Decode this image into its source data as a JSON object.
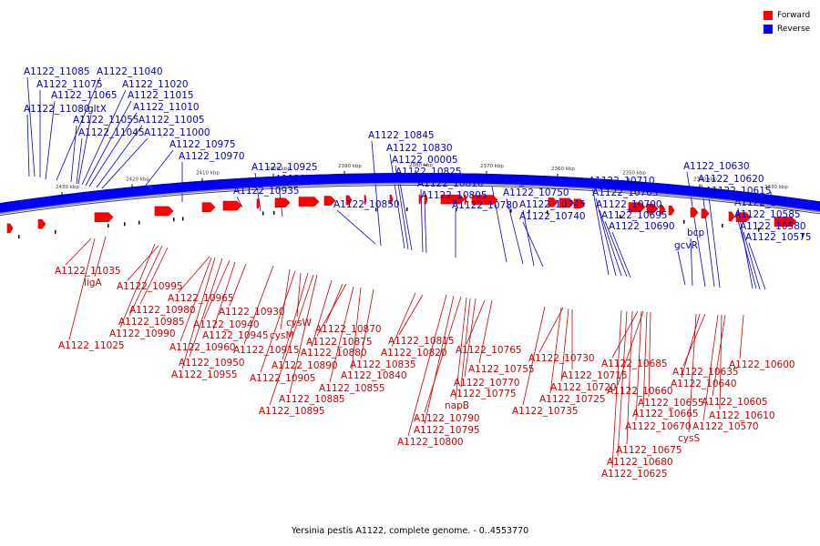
{
  "caption": "Yersinia pestis A1122, complete genome. - 0..4553770",
  "legend": [
    {
      "label": "Forward",
      "color": "#ff0000"
    },
    {
      "label": "Reverse",
      "color": "#0000ff"
    }
  ],
  "colors": {
    "forward": "#ff0000",
    "reverse": "#0000ff",
    "forward_line": "#cc0000",
    "reverse_line": "#0000cc"
  },
  "ticks": [
    "2430 kbp",
    "2420 kbp",
    "2410 kbp",
    "2400 kbp",
    "2390 kbp",
    "2380 kbp",
    "2370 kbp",
    "2360 kbp",
    "2350 kbp",
    "2340 kbp",
    "2330 kbp"
  ],
  "reverse_labels": [
    "A1122_11085",
    "A1122_11040",
    "A1122_11075",
    "A1122_11020",
    "A1122_11065",
    "A1122_11015",
    "A1122_11080",
    "gltX",
    "A1122_11010",
    "A1122_11055",
    "A1122_11005",
    "A1122_11045",
    "A1122_11000",
    "A1122_10975",
    "A1122_10970",
    "A1122_10925",
    "A1122_10920",
    "A1122_10935",
    "A1122_10850",
    "A1122_10845",
    "A1122_10830",
    "A1122_00005",
    "A1122_10825",
    "A1122_10810",
    "A1122_10805",
    "A1122_10780",
    "A1122_10760",
    "A1122_10750",
    "A1122_10745",
    "A1122_10740",
    "A1122_10710",
    "A1122_10705",
    "A1122_10700",
    "A1122_10695",
    "A1122_10690",
    "bcp",
    "gcvR",
    "A1122_10630",
    "A1122_10620",
    "A1122_10615",
    "A1122_10590",
    "A1122_10585",
    "A1122_10580",
    "A1122_10575"
  ],
  "forward_labels": [
    "A1122_11035",
    "ligA",
    "A1122_10995",
    "A1122_10965",
    "A1122_10980",
    "A1122_10985",
    "A1122_10990",
    "A1122_11025",
    "A1122_10930",
    "A1122_10940",
    "A1122_10945",
    "A1122_10960",
    "cysW",
    "cysM",
    "A1122_10915",
    "A1122_10950",
    "A1122_10955",
    "A1122_10890",
    "A1122_10905",
    "A1122_10885",
    "A1122_10895",
    "A1122_10870",
    "A1122_10875",
    "A1122_10880",
    "A1122_10835",
    "A1122_10840",
    "A1122_10855",
    "A1122_10815",
    "A1122_10820",
    "A1122_10765",
    "A1122_10755",
    "A1122_10770",
    "A1122_10775",
    "napB",
    "A1122_10790",
    "A1122_10795",
    "A1122_10800",
    "A1122_10730",
    "A1122_10715",
    "A1122_10720",
    "A1122_10725",
    "A1122_10735",
    "A1122_10685",
    "A1122_10660",
    "A1122_10655",
    "A1122_10665",
    "A1122_10670",
    "A1122_10675",
    "A1122_10680",
    "A1122_10625",
    "A1122_10635",
    "A1122_10640",
    "cysS",
    "A1122_10600",
    "A1122_10605",
    "A1122_10610",
    "A1122_10570"
  ]
}
